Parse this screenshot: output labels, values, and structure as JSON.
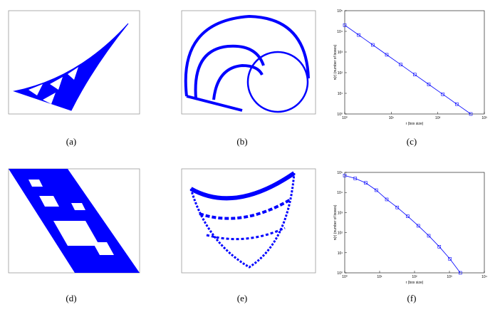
{
  "panels": [
    "(a)",
    "(b)",
    "(c)",
    "(d)",
    "(e)",
    "(f)"
  ],
  "chart_data": [
    {
      "type": "line",
      "x_label": "r (box size)",
      "y_label": "n(r) (number of boxes)",
      "log_x": true,
      "log_y": true,
      "color": "#0000ff",
      "x": [
        1,
        2,
        4,
        8,
        16,
        32,
        64,
        128,
        256,
        512
      ],
      "values": [
        20000,
        6650,
        2210,
        735,
        245,
        81,
        27,
        9,
        3,
        1
      ],
      "xlim": [
        1,
        1000
      ],
      "xticks": [
        {
          "value": 1,
          "label": "10⁰"
        },
        {
          "value": 10,
          "label": "10¹"
        },
        {
          "value": 100,
          "label": "10²"
        },
        {
          "value": 1000,
          "label": "10³"
        }
      ],
      "ylim": [
        1,
        100000
      ],
      "yticks": [
        {
          "value": 1,
          "label": "10⁰"
        },
        {
          "value": 10,
          "label": "10¹"
        },
        {
          "value": 100,
          "label": "10²"
        },
        {
          "value": 1000,
          "label": "10³"
        },
        {
          "value": 10000,
          "label": "10⁴"
        },
        {
          "value": 100000,
          "label": "10⁵"
        }
      ]
    },
    {
      "type": "line",
      "x_label": "r (box size)",
      "y_label": "n(r) (number of boxes)",
      "log_x": true,
      "log_y": true,
      "color": "#0000ff",
      "x": [
        1,
        2,
        4,
        8,
        16,
        32,
        64,
        128,
        256,
        512,
        1024,
        2048
      ],
      "values": [
        70000,
        50000,
        30000,
        13000,
        4500,
        1800,
        650,
        220,
        70,
        20,
        5,
        1
      ],
      "xlim": [
        1,
        10000
      ],
      "xticks": [
        {
          "value": 1,
          "label": "10⁰"
        },
        {
          "value": 10,
          "label": "10¹"
        },
        {
          "value": 100,
          "label": "10²"
        },
        {
          "value": 1000,
          "label": "10³"
        },
        {
          "value": 10000,
          "label": "10⁴"
        }
      ],
      "ylim": [
        1,
        100000
      ],
      "yticks": [
        {
          "value": 1,
          "label": "10⁰"
        },
        {
          "value": 10,
          "label": "10¹"
        },
        {
          "value": 100,
          "label": "10²"
        },
        {
          "value": 1000,
          "label": "10³"
        },
        {
          "value": 10000,
          "label": "10⁴"
        },
        {
          "value": 100000,
          "label": "10⁵"
        }
      ]
    }
  ]
}
